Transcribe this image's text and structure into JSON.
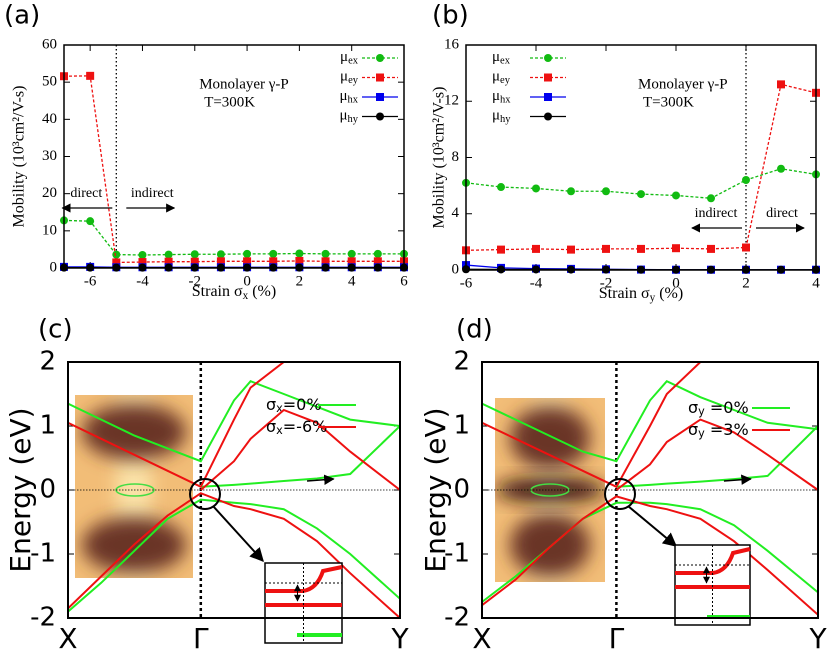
{
  "chart_data": [
    {
      "type": "line",
      "label": "(a)",
      "xlabel": "Strain σx (%)",
      "ylabel": "Mobility (10³cm²/V-s)",
      "notes": [
        "Monolayer γ-P",
        "T=300K"
      ],
      "left_note": "direct",
      "right_note": "indirect",
      "divider": -5,
      "x": [
        -7,
        -6,
        -5,
        -4,
        -3,
        -2,
        -1,
        0,
        1,
        2,
        3,
        4,
        5,
        6
      ],
      "xlim": [
        -7,
        6
      ],
      "xticks": [
        -6,
        -4,
        -2,
        0,
        2,
        4,
        6
      ],
      "ylim": [
        0,
        60
      ],
      "yticks": [
        0,
        10,
        20,
        30,
        40,
        50,
        60
      ],
      "series": [
        {
          "name": "μex",
          "color": "#11bb11",
          "line_style": "dashed",
          "marker": "circle",
          "values": [
            12.8,
            12.6,
            3.6,
            3.5,
            3.6,
            3.7,
            3.7,
            3.8,
            3.8,
            3.9,
            3.8,
            3.8,
            3.8,
            3.8
          ]
        },
        {
          "name": "μey",
          "color": "#ee1111",
          "line_style": "dashed",
          "marker": "square",
          "values": [
            51.6,
            51.7,
            1.5,
            1.6,
            1.7,
            1.7,
            1.8,
            1.8,
            1.8,
            1.9,
            1.8,
            1.8,
            1.8,
            1.8
          ]
        },
        {
          "name": "μhx",
          "color": "#0000ee",
          "line_style": "solid",
          "marker": "square",
          "values": [
            0.3,
            0.3,
            0.2,
            0.2,
            0.2,
            0.2,
            0.2,
            0.2,
            0.2,
            0.2,
            0.2,
            0.2,
            0.2,
            0.2
          ]
        },
        {
          "name": "μhy",
          "color": "#000000",
          "line_style": "solid",
          "marker": "circle",
          "values": [
            0.1,
            0.1,
            0.1,
            0.1,
            0.1,
            0.1,
            0.1,
            0.1,
            0.1,
            0.1,
            0.1,
            0.1,
            0.1,
            0.1
          ]
        }
      ]
    },
    {
      "type": "line",
      "label": "(b)",
      "xlabel": "Strain σy (%)",
      "ylabel": "Mobility (10³cm²/V-s)",
      "notes": [
        "Monolayer γ-P",
        "T=300K"
      ],
      "left_note": "indirect",
      "right_note": "direct",
      "divider": 2,
      "x": [
        -6,
        -5,
        -4,
        -3,
        -2,
        -1,
        0,
        1,
        2,
        3,
        4
      ],
      "xlim": [
        -6,
        4
      ],
      "xticks": [
        -6,
        -4,
        -2,
        0,
        2,
        4
      ],
      "ylim": [
        0,
        16
      ],
      "yticks": [
        0,
        4,
        8,
        12,
        16
      ],
      "series": [
        {
          "name": "μex",
          "color": "#11bb11",
          "line_style": "dashed",
          "marker": "circle",
          "values": [
            6.2,
            5.9,
            5.8,
            5.6,
            5.6,
            5.4,
            5.3,
            5.1,
            6.4,
            7.2,
            6.8
          ]
        },
        {
          "name": "μey",
          "color": "#ee1111",
          "line_style": "dashed",
          "marker": "square",
          "values": [
            1.4,
            1.45,
            1.5,
            1.45,
            1.5,
            1.5,
            1.55,
            1.5,
            1.6,
            13.2,
            12.6
          ]
        },
        {
          "name": "μhx",
          "color": "#0000ee",
          "line_style": "solid",
          "marker": "square",
          "values": [
            0.35,
            0.15,
            0.1,
            0.08,
            0.05,
            0.03,
            0.02,
            0.02,
            0.02,
            0.02,
            0.02
          ]
        },
        {
          "name": "μhy",
          "color": "#000000",
          "line_style": "solid",
          "marker": "circle",
          "values": [
            0.05,
            0.04,
            0.04,
            0.03,
            0.03,
            0.02,
            0.02,
            0.02,
            0.02,
            0.02,
            0.02
          ]
        }
      ]
    },
    {
      "type": "line",
      "label": "(c)",
      "ylabel": "Energy (eV)",
      "x": [
        0,
        0.1,
        0.2,
        0.3,
        0.4,
        0.5,
        0.55,
        0.65,
        0.75,
        0.85,
        1
      ],
      "xlim": [
        0,
        1
      ],
      "xticks": [
        {
          "value": 0,
          "label": "X"
        },
        {
          "value": 0.4,
          "label": "Γ"
        },
        {
          "value": 1,
          "label": "Y"
        }
      ],
      "ylim": [
        -2,
        2
      ],
      "yticks": [
        -2,
        -1,
        0,
        1,
        2
      ],
      "series": [
        {
          "name": "σx=0%",
          "color": "#22ee22",
          "line_style": "solid",
          "bands": [
            [
              1.35,
              1.1,
              0.85,
              0.65,
              0.45,
              1.4,
              1.7,
              1.5,
              1.3,
              1.1,
              1.0
            ],
            [
              null,
              null,
              null,
              null,
              0.05,
              0.08,
              0.1,
              0.14,
              0.18,
              0.25,
              1.0
            ],
            [
              -1.9,
              -1.45,
              -0.95,
              -0.45,
              -0.15,
              -0.2,
              -0.22,
              -0.3,
              -0.6,
              -1.0,
              -1.7
            ]
          ]
        },
        {
          "name": "σx=-6%",
          "color": "#ee1111",
          "line_style": "solid",
          "bands": [
            [
              1.05,
              0.8,
              0.55,
              0.3,
              0.05,
              1.1,
              1.6,
              2.0,
              null,
              null,
              null
            ],
            [
              null,
              null,
              null,
              null,
              0.0,
              0.45,
              0.8,
              1.25,
              1.05,
              0.6,
              0.0
            ],
            [
              -1.85,
              -1.35,
              -0.85,
              -0.4,
              -0.05,
              -0.25,
              -0.3,
              -0.45,
              -0.8,
              -1.3,
              -2.0
            ]
          ]
        }
      ]
    },
    {
      "type": "line",
      "label": "(d)",
      "ylabel": "Energy (eV)",
      "x": [
        0,
        0.1,
        0.2,
        0.3,
        0.4,
        0.5,
        0.55,
        0.65,
        0.75,
        0.85,
        1
      ],
      "xlim": [
        0,
        1
      ],
      "xticks": [
        {
          "value": 0,
          "label": "X"
        },
        {
          "value": 0.4,
          "label": "Γ"
        },
        {
          "value": 1,
          "label": "Y"
        }
      ],
      "ylim": [
        -2,
        2
      ],
      "yticks": [
        -2,
        -1,
        0,
        1,
        2
      ],
      "series": [
        {
          "name": "σy =0%",
          "color": "#22ee22",
          "line_style": "solid",
          "bands": [
            [
              1.35,
              1.1,
              0.85,
              0.6,
              0.45,
              1.4,
              1.7,
              1.45,
              1.25,
              1.05,
              0.95
            ],
            [
              null,
              null,
              null,
              null,
              0.05,
              0.08,
              0.1,
              0.13,
              0.17,
              0.22,
              1.0
            ],
            [
              -1.75,
              -1.35,
              -0.9,
              -0.45,
              -0.2,
              -0.2,
              -0.22,
              -0.3,
              -0.55,
              -0.95,
              -1.6
            ]
          ]
        },
        {
          "name": "σy =3%",
          "color": "#ee1111",
          "line_style": "solid",
          "bands": [
            [
              1.05,
              0.8,
              0.55,
              0.3,
              0.05,
              1.0,
              1.5,
              2.0,
              null,
              null,
              null
            ],
            [
              null,
              null,
              null,
              null,
              0.0,
              0.4,
              0.75,
              1.1,
              0.9,
              0.55,
              0.0
            ],
            [
              -1.8,
              -1.4,
              -0.9,
              -0.45,
              -0.1,
              -0.25,
              -0.3,
              -0.45,
              -0.8,
              -1.25,
              -1.95
            ]
          ]
        }
      ]
    }
  ]
}
